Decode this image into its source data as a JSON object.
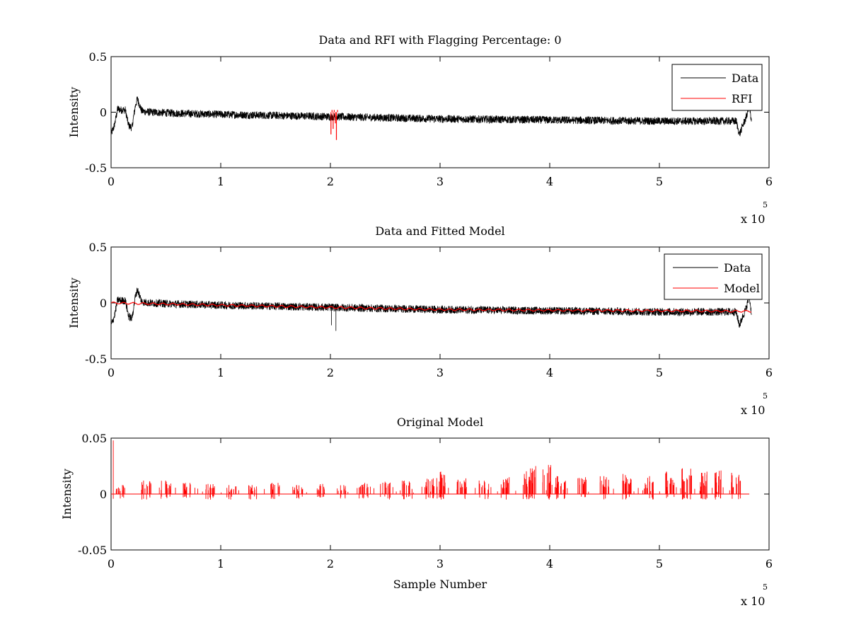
{
  "chart_data": [
    {
      "type": "line",
      "title": "Data and RFI with Flagging Percentage: 0",
      "xlabel": "",
      "ylabel": "Intensity",
      "xlim": [
        0,
        600000
      ],
      "ylim": [
        -0.5,
        0.5
      ],
      "xticks": [
        0,
        1,
        2,
        3,
        4,
        5,
        6
      ],
      "yticks": [
        "-0.5",
        "0",
        "0.5"
      ],
      "x_exponent": {
        "base": "x 10",
        "power": "5"
      },
      "legend": {
        "placement": "top-right",
        "entries": [
          "Data",
          "RFI"
        ]
      },
      "grid": false,
      "series": [
        {
          "name": "Data",
          "color": "#000000",
          "style": "noisy",
          "noise_amplitude": 0.035,
          "x": [
            0,
            3000,
            6000,
            9000,
            13000,
            16000,
            19000,
            22000,
            24000,
            28000,
            35000,
            60000,
            100000,
            150000,
            200000,
            250000,
            300000,
            350000,
            400000,
            450000,
            500000,
            550000,
            570000,
            573000,
            576000,
            579000,
            582000,
            584000
          ],
          "y": [
            -0.2,
            -0.12,
            0.03,
            0.02,
            0.02,
            -0.12,
            -0.14,
            0.05,
            0.12,
            0.01,
            0.0,
            -0.01,
            -0.02,
            -0.03,
            -0.04,
            -0.05,
            -0.06,
            -0.065,
            -0.07,
            -0.075,
            -0.08,
            -0.08,
            -0.08,
            -0.2,
            -0.12,
            -0.05,
            0.06,
            -0.1
          ]
        },
        {
          "name": "RFI",
          "color": "#ff0000",
          "style": "spikes",
          "spikes": [
            {
              "x": 200500,
              "y": -0.2
            },
            {
              "x": 201500,
              "y": 0.02
            },
            {
              "x": 202500,
              "y": -0.15
            },
            {
              "x": 203500,
              "y": 0.02
            },
            {
              "x": 204500,
              "y": -0.1
            },
            {
              "x": 205500,
              "y": -0.25
            },
            {
              "x": 206500,
              "y": 0.02
            }
          ]
        }
      ]
    },
    {
      "type": "line",
      "title": "Data and Fitted Model",
      "xlabel": "",
      "ylabel": "Intensity",
      "xlim": [
        0,
        600000
      ],
      "ylim": [
        -0.5,
        0.5
      ],
      "xticks": [
        0,
        1,
        2,
        3,
        4,
        5,
        6
      ],
      "yticks": [
        "-0.5",
        "0",
        "0.5"
      ],
      "x_exponent": {
        "base": "x 10",
        "power": "5"
      },
      "legend": {
        "placement": "top-right",
        "entries": [
          "Data",
          "Model"
        ]
      },
      "grid": false,
      "series": [
        {
          "name": "Data",
          "color": "#000000",
          "style": "noisy",
          "noise_amplitude": 0.035,
          "x": [
            0,
            3000,
            6000,
            9000,
            13000,
            16000,
            19000,
            22000,
            24000,
            28000,
            35000,
            60000,
            100000,
            150000,
            200000,
            250000,
            300000,
            350000,
            400000,
            450000,
            500000,
            550000,
            570000,
            573000,
            576000,
            579000,
            582000,
            584000
          ],
          "y": [
            -0.2,
            -0.12,
            0.03,
            0.02,
            0.02,
            -0.12,
            -0.14,
            0.05,
            0.12,
            0.01,
            0.0,
            -0.01,
            -0.02,
            -0.03,
            -0.04,
            -0.05,
            -0.06,
            -0.065,
            -0.07,
            -0.075,
            -0.08,
            -0.08,
            -0.08,
            -0.2,
            -0.12,
            -0.05,
            0.06,
            -0.1
          ],
          "spikes": [
            {
              "x": 201000,
              "y": -0.2
            },
            {
              "x": 205000,
              "y": -0.25
            }
          ]
        },
        {
          "name": "Model",
          "color": "#ff0000",
          "style": "wavy",
          "wave_amplitude": 0.008,
          "x": [
            0,
            50000,
            100000,
            200000,
            300000,
            400000,
            500000,
            584000
          ],
          "y": [
            0.0,
            -0.01,
            -0.02,
            -0.04,
            -0.06,
            -0.065,
            -0.07,
            -0.075
          ]
        }
      ]
    },
    {
      "type": "line",
      "title": "Original Model",
      "xlabel": "Sample Number",
      "ylabel": "Intensity",
      "xlim": [
        0,
        600000
      ],
      "ylim": [
        -0.05,
        0.05
      ],
      "xticks": [
        0,
        1,
        2,
        3,
        4,
        5,
        6
      ],
      "yticks": [
        "-0.05",
        "0",
        "0.05"
      ],
      "x_exponent": {
        "base": "x 10",
        "power": "5"
      },
      "grid": false,
      "series": [
        {
          "color": "#ff0000",
          "style": "bursts",
          "baseline": 0,
          "spike_peaks": [
            {
              "x": 2000,
              "y": 0.048
            },
            {
              "x": 8000,
              "y": 0.008
            },
            {
              "x": 32000,
              "y": 0.012
            },
            {
              "x": 50000,
              "y": 0.012
            },
            {
              "x": 70000,
              "y": 0.01
            },
            {
              "x": 90000,
              "y": 0.009
            },
            {
              "x": 110000,
              "y": 0.008
            },
            {
              "x": 130000,
              "y": 0.008
            },
            {
              "x": 150000,
              "y": 0.01
            },
            {
              "x": 170000,
              "y": 0.008
            },
            {
              "x": 190000,
              "y": 0.009
            },
            {
              "x": 210000,
              "y": 0.008
            },
            {
              "x": 230000,
              "y": 0.01
            },
            {
              "x": 250000,
              "y": 0.011
            },
            {
              "x": 270000,
              "y": 0.012
            },
            {
              "x": 290000,
              "y": 0.014
            },
            {
              "x": 300000,
              "y": 0.02
            },
            {
              "x": 320000,
              "y": 0.014
            },
            {
              "x": 340000,
              "y": 0.012
            },
            {
              "x": 360000,
              "y": 0.015
            },
            {
              "x": 380000,
              "y": 0.018
            },
            {
              "x": 383000,
              "y": 0.025
            },
            {
              "x": 398000,
              "y": 0.026
            },
            {
              "x": 410000,
              "y": 0.016
            },
            {
              "x": 430000,
              "y": 0.015
            },
            {
              "x": 450000,
              "y": 0.016
            },
            {
              "x": 470000,
              "y": 0.018
            },
            {
              "x": 490000,
              "y": 0.016
            },
            {
              "x": 510000,
              "y": 0.02
            },
            {
              "x": 525000,
              "y": 0.023
            },
            {
              "x": 540000,
              "y": 0.02
            },
            {
              "x": 555000,
              "y": 0.021
            },
            {
              "x": 570000,
              "y": 0.019
            }
          ]
        }
      ]
    }
  ]
}
